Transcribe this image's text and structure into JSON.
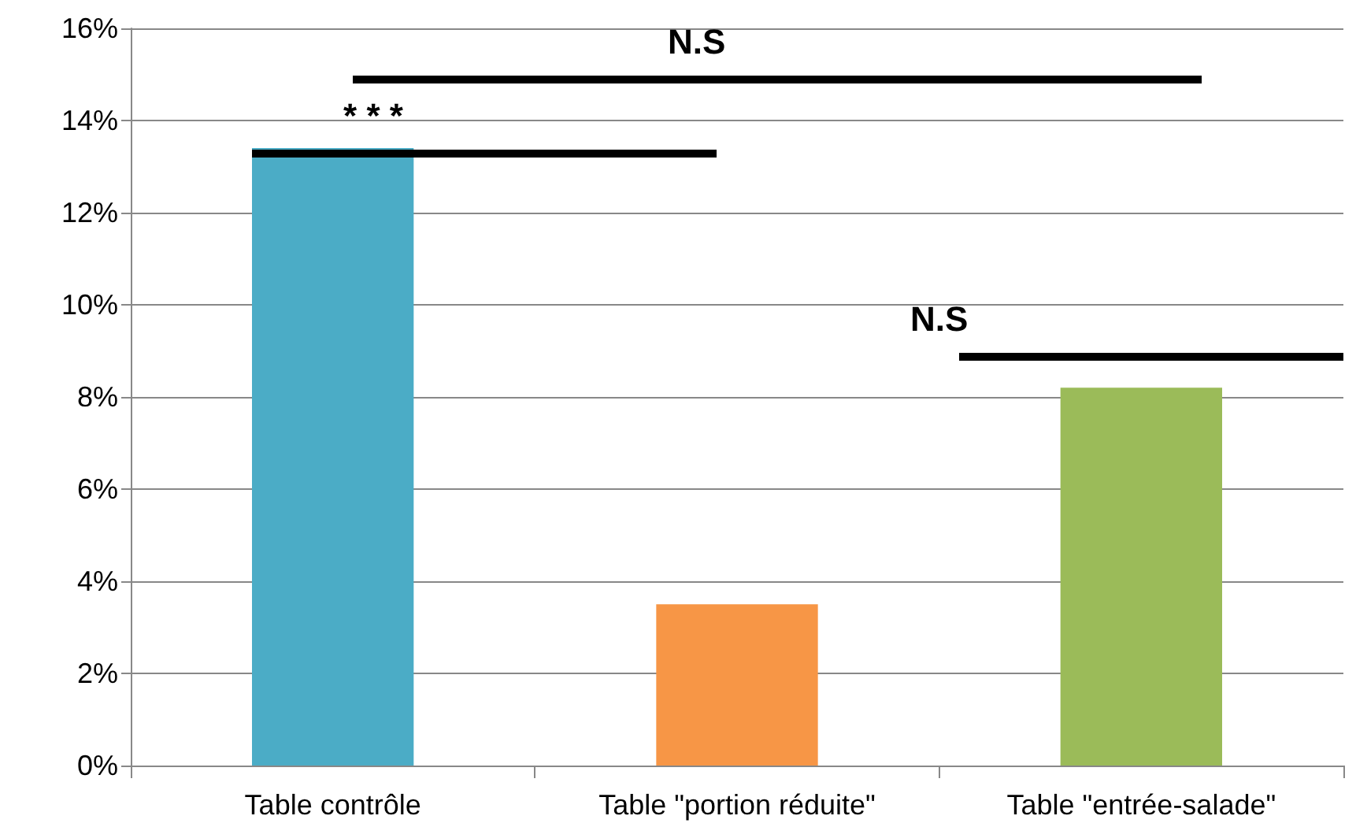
{
  "chart_data": {
    "type": "bar",
    "categories": [
      "Table contrôle",
      "Table \"portion réduite\"",
      "Table \"entrée-salade\""
    ],
    "values": [
      13.4,
      3.5,
      8.2
    ],
    "colors": [
      "#4bacc6",
      "#f79646",
      "#9bbb59"
    ],
    "ylim": [
      0,
      16
    ],
    "yticks": [
      {
        "value": 0,
        "label": "0%"
      },
      {
        "value": 2,
        "label": "2%"
      },
      {
        "value": 4,
        "label": "4%"
      },
      {
        "value": 6,
        "label": "6%"
      },
      {
        "value": 8,
        "label": "8%"
      },
      {
        "value": 10,
        "label": "10%"
      },
      {
        "value": 12,
        "label": "12%"
      },
      {
        "value": 14,
        "label": "14%"
      },
      {
        "value": 16,
        "label": "16%"
      }
    ],
    "grid": "y",
    "annotations": [
      "N.S",
      "* * *",
      "N.S"
    ]
  }
}
